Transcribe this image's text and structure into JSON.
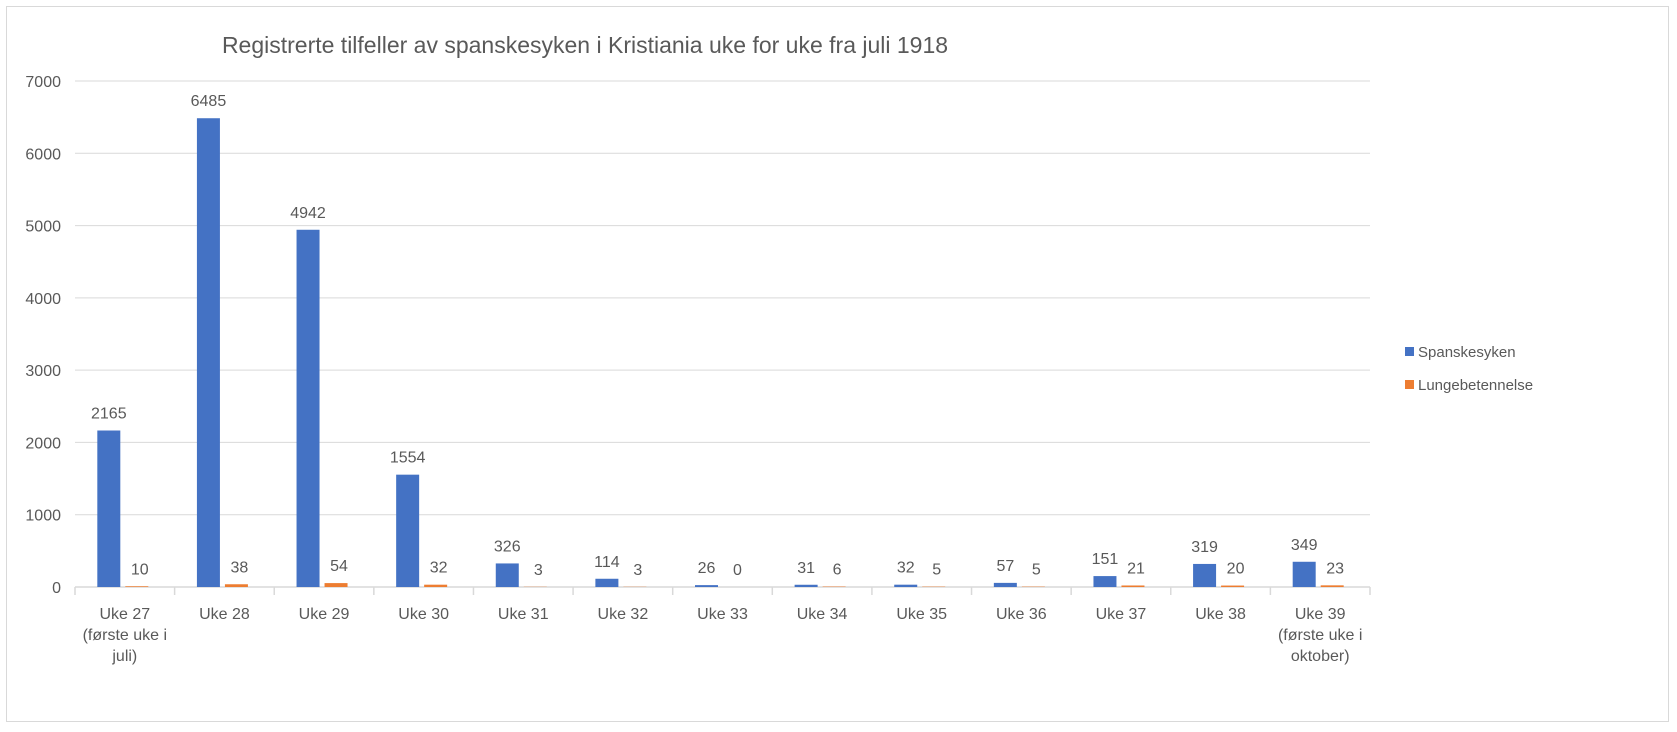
{
  "chart_data": {
    "type": "bar",
    "title": "Registrerte tilfeller av spanskesyken i Kristiania uke for uke fra juli 1918",
    "xlabel": "",
    "ylabel": "",
    "ylim": [
      0,
      7000
    ],
    "yticks": [
      "0",
      "1000",
      "2000",
      "3000",
      "4000",
      "5000",
      "6000",
      "7000"
    ],
    "grid": true,
    "legend_position": "right",
    "categories": [
      [
        "Uke 27",
        "(første uke i",
        "juli)"
      ],
      [
        "Uke 28"
      ],
      [
        "Uke 29"
      ],
      [
        "Uke 30"
      ],
      [
        "Uke 31"
      ],
      [
        "Uke 32"
      ],
      [
        "Uke 33"
      ],
      [
        "Uke 34"
      ],
      [
        "Uke 35"
      ],
      [
        "Uke 36"
      ],
      [
        "Uke 37"
      ],
      [
        "Uke 38"
      ],
      [
        "Uke 39",
        "(første uke i",
        "oktober)"
      ]
    ],
    "series": [
      {
        "name": "Spanskesyken",
        "color": "#4472c4",
        "values": [
          2165,
          6485,
          4942,
          1554,
          326,
          114,
          26,
          31,
          32,
          57,
          151,
          319,
          349
        ]
      },
      {
        "name": "Lungebetennelse",
        "color": "#ed7d31",
        "values": [
          10,
          38,
          54,
          32,
          3,
          3,
          0,
          6,
          5,
          5,
          21,
          20,
          23
        ]
      }
    ]
  }
}
